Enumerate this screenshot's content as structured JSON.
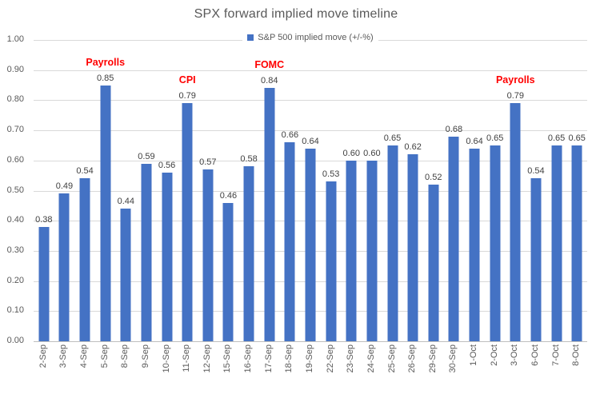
{
  "chart_data": {
    "type": "bar",
    "title": "SPX forward implied move timeline",
    "legend": "S&P 500 implied move (+/-%)",
    "legend_position": "top-center",
    "categories": [
      "2-Sep",
      "3-Sep",
      "4-Sep",
      "5-Sep",
      "8-Sep",
      "9-Sep",
      "10-Sep",
      "11-Sep",
      "12-Sep",
      "15-Sep",
      "16-Sep",
      "17-Sep",
      "18-Sep",
      "19-Sep",
      "22-Sep",
      "23-Sep",
      "24-Sep",
      "25-Sep",
      "26-Sep",
      "29-Sep",
      "30-Sep",
      "1-Oct",
      "2-Oct",
      "3-Oct",
      "6-Oct",
      "7-Oct",
      "8-Oct"
    ],
    "values": [
      0.38,
      0.49,
      0.54,
      0.85,
      0.44,
      0.59,
      0.56,
      0.79,
      0.57,
      0.46,
      0.58,
      0.84,
      0.66,
      0.64,
      0.53,
      0.6,
      0.6,
      0.65,
      0.62,
      0.52,
      0.68,
      0.64,
      0.65,
      0.79,
      0.54,
      0.65,
      0.65
    ],
    "value_label_decimals": 2,
    "y_ticks": [
      "0.00",
      "0.10",
      "0.20",
      "0.30",
      "0.40",
      "0.50",
      "0.60",
      "0.70",
      "0.80",
      "0.90",
      "1.00"
    ],
    "ylim": [
      0,
      1
    ],
    "xlabel": "",
    "ylabel": "",
    "grid": "horizontal",
    "x_label_rotation": -90,
    "annotations": [
      {
        "text": "Payrolls",
        "category": "5-Sep",
        "index": 3
      },
      {
        "text": "CPI",
        "category": "11-Sep",
        "index": 7
      },
      {
        "text": "FOMC",
        "category": "17-Sep",
        "index": 11
      },
      {
        "text": "Payrolls",
        "category": "3-Oct",
        "index": 23
      }
    ],
    "colors": {
      "bar": "#4472C4",
      "annotation": "#FF0000",
      "title_text": "#595959",
      "axis_text": "#595959",
      "data_label": "#404040",
      "gridline": "#D9D9D9",
      "axis_line": "#BFBFBF",
      "background": "#FFFFFF"
    }
  }
}
